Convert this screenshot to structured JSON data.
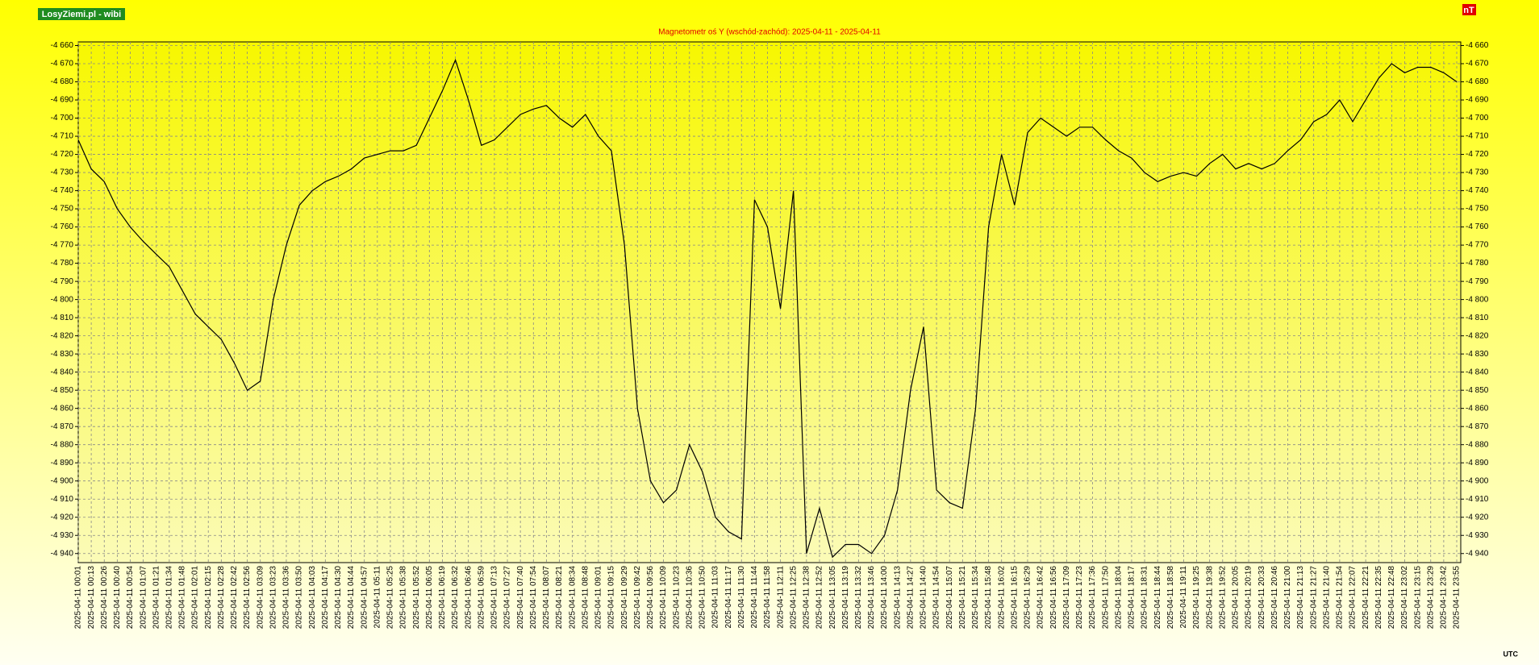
{
  "chart_data": {
    "type": "line",
    "brand": "LosyZiemi.pl - wibi",
    "unit": "nT",
    "title": "Magnetometr oś Y (wschód-zachód): 2025-04-11 - 2025-04-11",
    "x_label": "UTC",
    "color": "#000000",
    "grid": true,
    "categories": [
      "2025-04-11 00:01",
      "2025-04-11 00:13",
      "2025-04-11 00:26",
      "2025-04-11 00:40",
      "2025-04-11 00:54",
      "2025-04-11 01:07",
      "2025-04-11 01:21",
      "2025-04-11 01:34",
      "2025-04-11 01:48",
      "2025-04-11 02:01",
      "2025-04-11 02:15",
      "2025-04-11 02:28",
      "2025-04-11 02:42",
      "2025-04-11 02:56",
      "2025-04-11 03:09",
      "2025-04-11 03:23",
      "2025-04-11 03:36",
      "2025-04-11 03:50",
      "2025-04-11 04:03",
      "2025-04-11 04:17",
      "2025-04-11 04:30",
      "2025-04-11 04:44",
      "2025-04-11 04:57",
      "2025-04-11 05:11",
      "2025-04-11 05:25",
      "2025-04-11 05:38",
      "2025-04-11 05:52",
      "2025-04-11 06:05",
      "2025-04-11 06:19",
      "2025-04-11 06:32",
      "2025-04-11 06:46",
      "2025-04-11 06:59",
      "2025-04-11 07:13",
      "2025-04-11 07:27",
      "2025-04-11 07:40",
      "2025-04-11 07:54",
      "2025-04-11 08:07",
      "2025-04-11 08:21",
      "2025-04-11 08:34",
      "2025-04-11 08:48",
      "2025-04-11 09:01",
      "2025-04-11 09:15",
      "2025-04-11 09:29",
      "2025-04-11 09:42",
      "2025-04-11 09:56",
      "2025-04-11 10:09",
      "2025-04-11 10:23",
      "2025-04-11 10:36",
      "2025-04-11 10:50",
      "2025-04-11 11:03",
      "2025-04-11 11:17",
      "2025-04-11 11:30",
      "2025-04-11 11:44",
      "2025-04-11 11:58",
      "2025-04-11 12:11",
      "2025-04-11 12:25",
      "2025-04-11 12:38",
      "2025-04-11 12:52",
      "2025-04-11 13:05",
      "2025-04-11 13:19",
      "2025-04-11 13:32",
      "2025-04-11 13:46",
      "2025-04-11 14:00",
      "2025-04-11 14:13",
      "2025-04-11 14:27",
      "2025-04-11 14:40",
      "2025-04-11 14:54",
      "2025-04-11 15:07",
      "2025-04-11 15:21",
      "2025-04-11 15:34",
      "2025-04-11 15:48",
      "2025-04-11 16:02",
      "2025-04-11 16:15",
      "2025-04-11 16:29",
      "2025-04-11 16:42",
      "2025-04-11 16:56",
      "2025-04-11 17:09",
      "2025-04-11 17:23",
      "2025-04-11 17:36",
      "2025-04-11 17:50",
      "2025-04-11 18:04",
      "2025-04-11 18:17",
      "2025-04-11 18:31",
      "2025-04-11 18:44",
      "2025-04-11 18:58",
      "2025-04-11 19:11",
      "2025-04-11 19:25",
      "2025-04-11 19:38",
      "2025-04-11 19:52",
      "2025-04-11 20:05",
      "2025-04-11 20:19",
      "2025-04-11 20:33",
      "2025-04-11 20:46",
      "2025-04-11 21:00",
      "2025-04-11 21:13",
      "2025-04-11 21:27",
      "2025-04-11 21:40",
      "2025-04-11 21:54",
      "2025-04-11 22:07",
      "2025-04-11 22:21",
      "2025-04-11 22:35",
      "2025-04-11 22:48",
      "2025-04-11 23:02",
      "2025-04-11 23:15",
      "2025-04-11 23:29",
      "2025-04-11 23:42",
      "2025-04-11 23:55"
    ],
    "values": [
      -4712,
      -4728,
      -4735,
      -4750,
      -4760,
      -4768,
      -4775,
      -4782,
      -4795,
      -4808,
      -4815,
      -4822,
      -4835,
      -4850,
      -4845,
      -4800,
      -4770,
      -4748,
      -4740,
      -4735,
      -4732,
      -4728,
      -4722,
      -4720,
      -4718,
      -4718,
      -4715,
      -4700,
      -4685,
      -4668,
      -4690,
      -4715,
      -4712,
      -4705,
      -4698,
      -4695,
      -4693,
      -4700,
      -4705,
      -4698,
      -4710,
      -4718,
      -4770,
      -4860,
      -4900,
      -4912,
      -4905,
      -4880,
      -4895,
      -4920,
      -4928,
      -4932,
      -4745,
      -4760,
      -4805,
      -4740,
      -4940,
      -4915,
      -4942,
      -4935,
      -4935,
      -4940,
      -4930,
      -4905,
      -4850,
      -4815,
      -4905,
      -4912,
      -4915,
      -4860,
      -4760,
      -4720,
      -4748,
      -4708,
      -4700,
      -4705,
      -4710,
      -4705,
      -4705,
      -4712,
      -4718,
      -4722,
      -4730,
      -4735,
      -4732,
      -4730,
      -4732,
      -4725,
      -4720,
      -4728,
      -4725,
      -4728,
      -4725,
      -4718,
      -4712,
      -4702,
      -4698,
      -4690,
      -4702,
      -4690,
      -4678,
      -4670,
      -4675,
      -4672,
      -4672,
      -4675,
      -4680
    ],
    "ylim": [
      -4945,
      -4658
    ],
    "yticks": [
      {
        "value": -4660,
        "label": "-4 660"
      },
      {
        "value": -4670,
        "label": "-4 670"
      },
      {
        "value": -4680,
        "label": "-4 680"
      },
      {
        "value": -4690,
        "label": "-4 690"
      },
      {
        "value": -4700,
        "label": "-4 700"
      },
      {
        "value": -4710,
        "label": "-4 710"
      },
      {
        "value": -4720,
        "label": "-4 720"
      },
      {
        "value": -4730,
        "label": "-4 730"
      },
      {
        "value": -4740,
        "label": "-4 740"
      },
      {
        "value": -4750,
        "label": "-4 750"
      },
      {
        "value": -4760,
        "label": "-4 760"
      },
      {
        "value": -4770,
        "label": "-4 770"
      },
      {
        "value": -4780,
        "label": "-4 780"
      },
      {
        "value": -4790,
        "label": "-4 790"
      },
      {
        "value": -4800,
        "label": "-4 800"
      },
      {
        "value": -4810,
        "label": "-4 810"
      },
      {
        "value": -4820,
        "label": "-4 820"
      },
      {
        "value": -4830,
        "label": "-4 830"
      },
      {
        "value": -4840,
        "label": "-4 840"
      },
      {
        "value": -4850,
        "label": "-4 850"
      },
      {
        "value": -4860,
        "label": "-4 860"
      },
      {
        "value": -4870,
        "label": "-4 870"
      },
      {
        "value": -4880,
        "label": "-4 880"
      },
      {
        "value": -4890,
        "label": "-4 890"
      },
      {
        "value": -4900,
        "label": "-4 900"
      },
      {
        "value": -4910,
        "label": "-4 910"
      },
      {
        "value": -4920,
        "label": "-4 920"
      },
      {
        "value": -4930,
        "label": "-4 930"
      },
      {
        "value": -4940,
        "label": "-4 940"
      }
    ]
  }
}
